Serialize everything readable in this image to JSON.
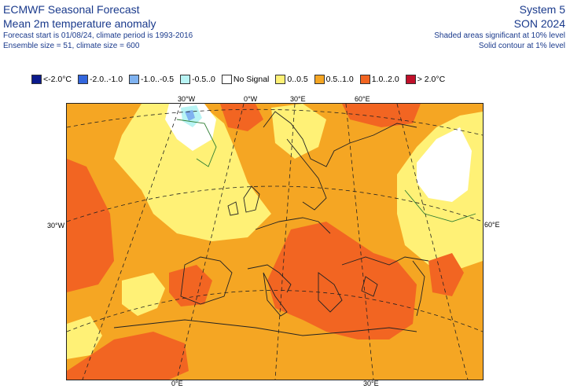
{
  "header": {
    "title": "ECMWF Seasonal Forecast",
    "subtitle": "Mean 2m temperature anomaly",
    "line1": "Forecast start is 01/08/24, climate period is 1993-2016",
    "line2": "Ensemble size = 51, climate size = 600",
    "system": "System 5",
    "season": "SON 2024",
    "note1": "Shaded areas significant at 10% level",
    "note2": "Solid contour at 1% level"
  },
  "legend": [
    {
      "label": "<-2.0°C",
      "color": "#0b1a8c"
    },
    {
      "label": "-2.0..-1.0",
      "color": "#3366dd"
    },
    {
      "label": "-1.0..-0.5",
      "color": "#7fb2f0"
    },
    {
      "label": "-0.5..0",
      "color": "#b8f4f4"
    },
    {
      "label": "No Signal",
      "color": "#ffffff"
    },
    {
      "label": "0..0.5",
      "color": "#fff176"
    },
    {
      "label": "0.5..1.0",
      "color": "#f5a623"
    },
    {
      "label": "1.0..2.0",
      "color": "#f26522"
    },
    {
      "label": "> 2.0°C",
      "color": "#c0102a"
    }
  ],
  "axis_labels": {
    "top_30w": "30°W",
    "top_0w": "0°W",
    "top_30e": "30°E",
    "top_60e": "60°E",
    "left_30w": "30°W",
    "right_60e": "60°E",
    "bottom_0e": "0°E",
    "bottom_30e": "30°E"
  },
  "colors": {
    "header_text": "#1a3a8c",
    "coast": "#222222",
    "graticule": "#222222",
    "sig_contour": "#2e7d32"
  }
}
